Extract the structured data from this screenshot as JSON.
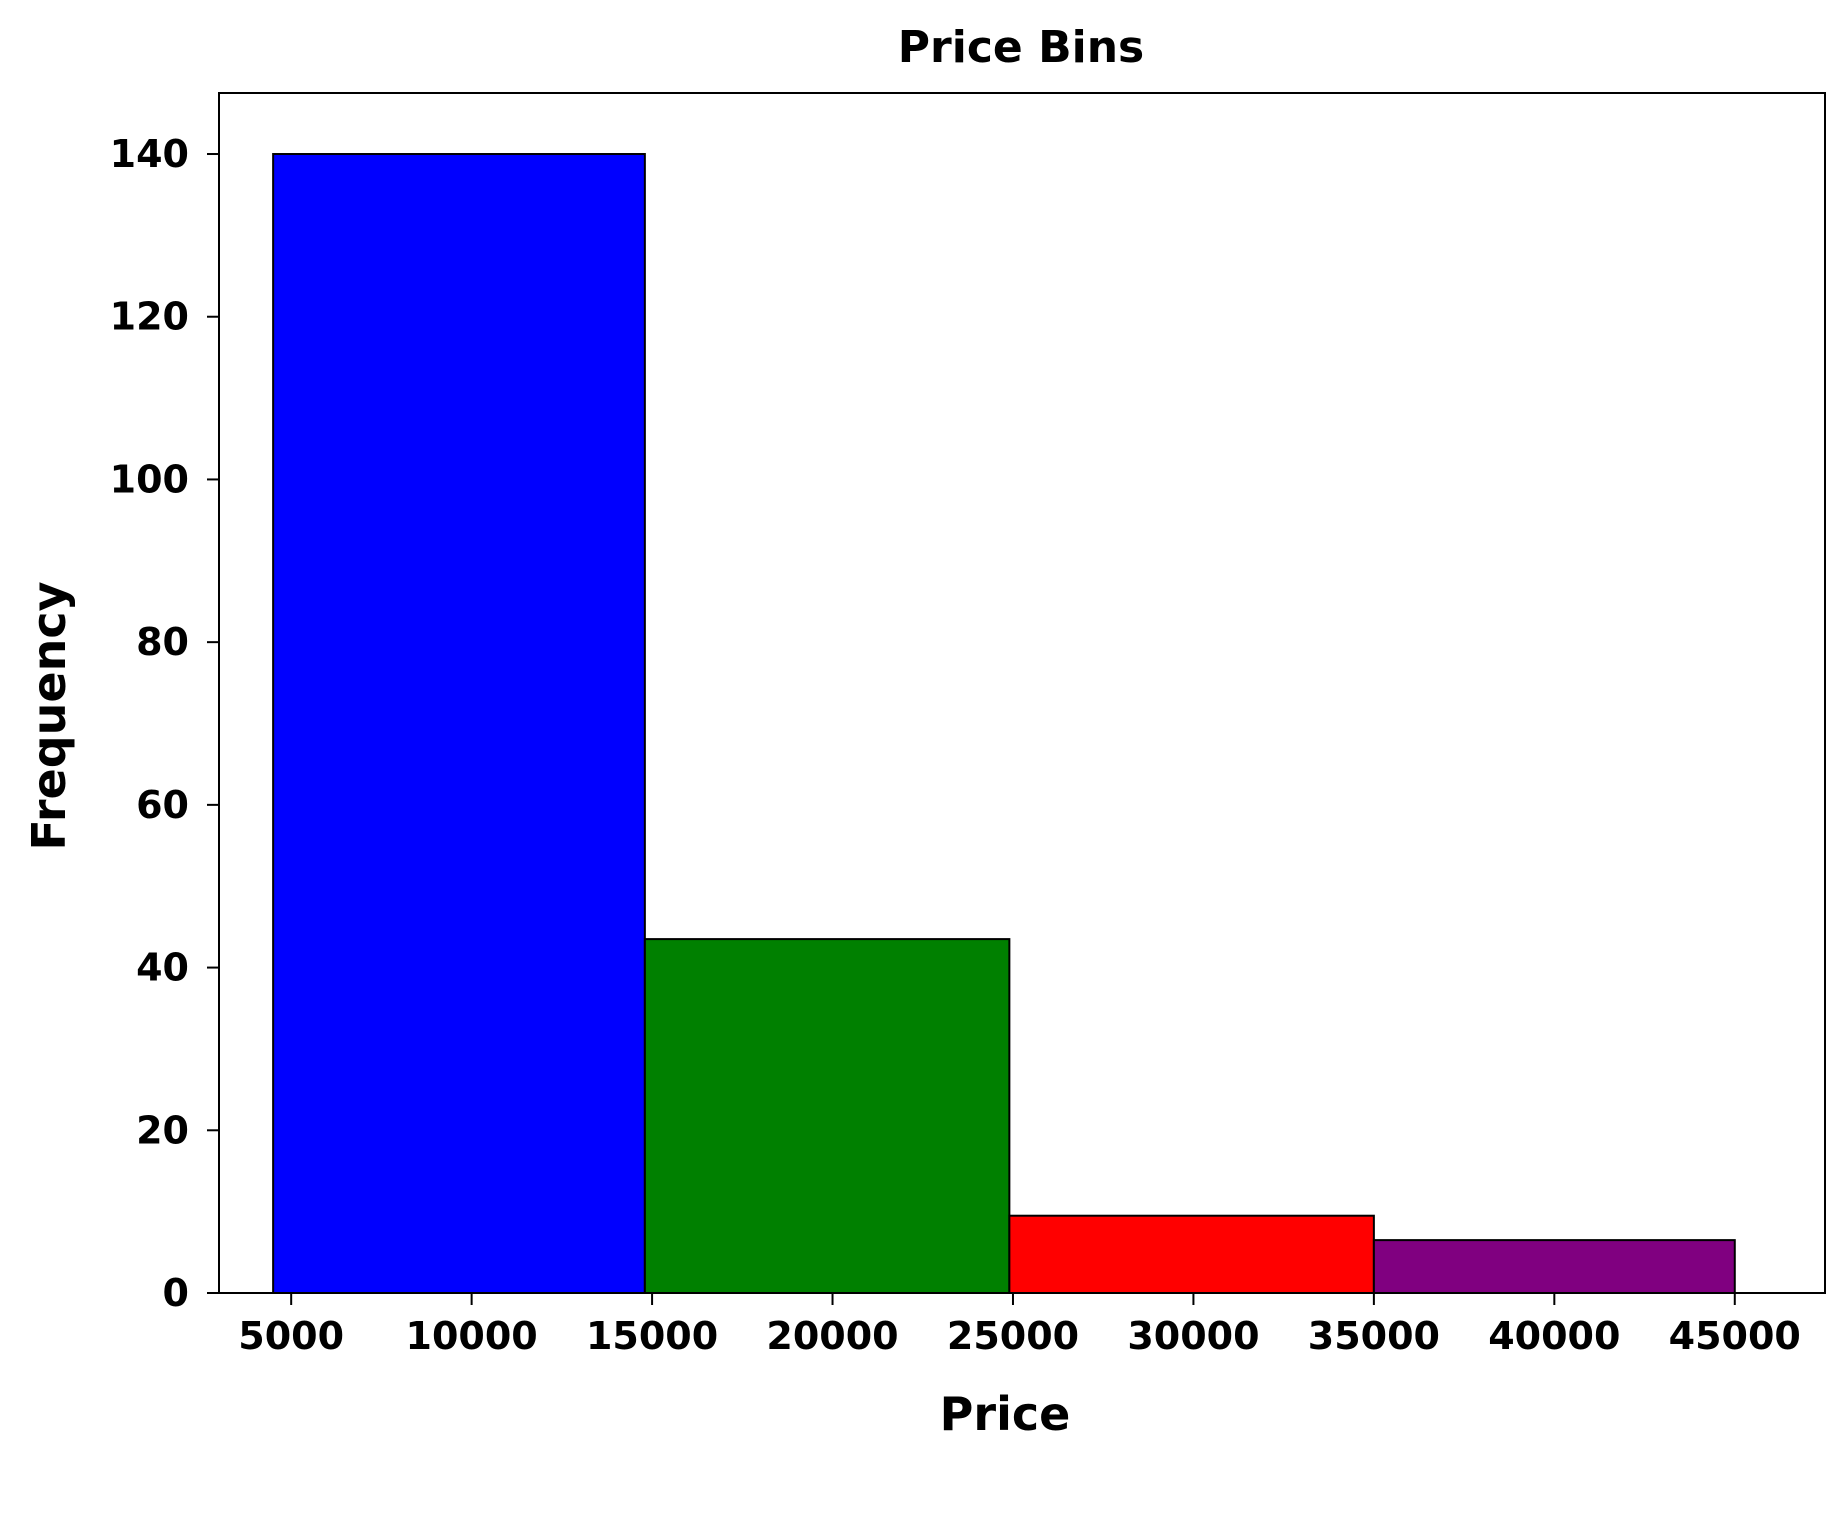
{
  "chart_data": {
    "type": "bar",
    "title": "Price Bins",
    "xlabel": "Price",
    "ylabel": "Frequency",
    "bins": [
      {
        "start": 4500,
        "end": 14800,
        "value": 140,
        "color": "#0000ff"
      },
      {
        "start": 14800,
        "end": 24900,
        "value": 43.5,
        "color": "#008000"
      },
      {
        "start": 24900,
        "end": 35000,
        "value": 9.5,
        "color": "#ff0000"
      },
      {
        "start": 35000,
        "end": 45000,
        "value": 6.5,
        "color": "#800080"
      }
    ],
    "xlim": [
      3000,
      47500
    ],
    "ylim": [
      0,
      147.5
    ],
    "xticks": [
      5000,
      10000,
      15000,
      20000,
      25000,
      30000,
      35000,
      40000,
      45000
    ],
    "xtick_labels": [
      "5000",
      "10000",
      "15000",
      "20000",
      "25000",
      "30000",
      "35000",
      "40000",
      "45000"
    ],
    "yticks": [
      0,
      20,
      40,
      60,
      80,
      100,
      120,
      140
    ],
    "ytick_labels": [
      "0",
      "20",
      "40",
      "60",
      "80",
      "100",
      "120",
      "140"
    ],
    "grid": false,
    "legend": "none"
  }
}
